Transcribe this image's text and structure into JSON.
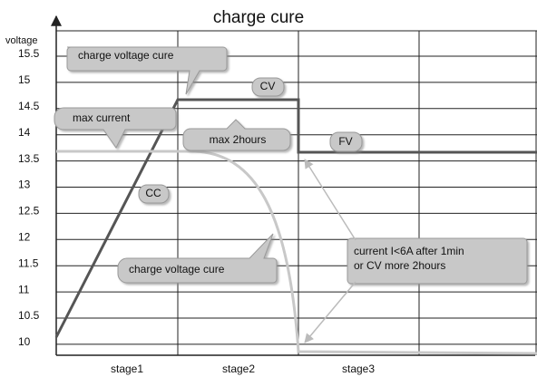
{
  "title": "charge cure",
  "y_axis": {
    "label": "voltage",
    "ticks": [
      15.5,
      15,
      14.5,
      14,
      13.5,
      13,
      12.5,
      12,
      11.5,
      11,
      10.5,
      10
    ]
  },
  "x_axis": {
    "categories": [
      "stage1",
      "stage2",
      "stage3"
    ]
  },
  "callouts": {
    "charge_voltage_top": "charge voltage cure",
    "cv": "CV",
    "max_current": "max current",
    "max_2hours": "max 2hours",
    "fv": "FV",
    "cc": "CC",
    "charge_voltage_bottom": "charge voltage cure",
    "current_note": [
      "current I<6A after 1min",
      "or CV more 2hours"
    ]
  }
}
